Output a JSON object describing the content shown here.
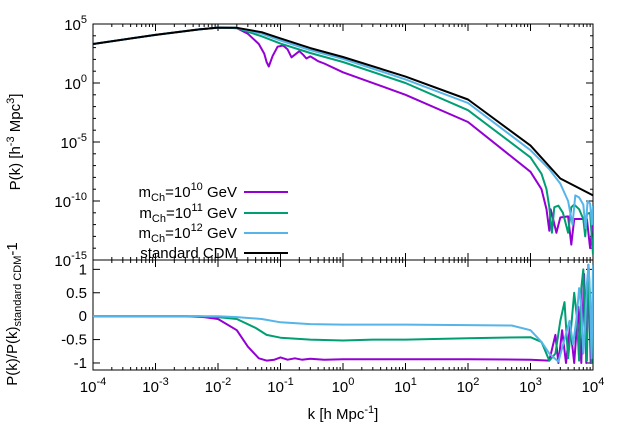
{
  "chart_data": [
    {
      "type": "line",
      "panel": "top",
      "xscale": "log",
      "yscale": "log",
      "xlim": [
        0.0001,
        10000
      ],
      "ylim": [
        1e-15,
        100000
      ],
      "ylabel": {
        "main": "P(k) [h",
        "sup1": "-3",
        "mid": " Mpc",
        "sup2": "3",
        "end": "]"
      },
      "y_ticks": [
        {
          "value": 1e-15,
          "base": "10",
          "exp": "-15"
        },
        {
          "value": 1e-10,
          "base": "10",
          "exp": "-10"
        },
        {
          "value": 1e-05,
          "base": "10",
          "exp": "-5"
        },
        {
          "value": 1,
          "base": "10",
          "exp": "0"
        },
        {
          "value": 100000,
          "base": "10",
          "exp": "5"
        }
      ],
      "legend_position": "bottom-left",
      "series": [
        {
          "name": "mCh=10^10 GeV",
          "legend": {
            "prefix": "m",
            "sub": "Ch",
            "eq": "=10",
            "sup": "10",
            "unit": " GeV"
          },
          "color": "#9400d3",
          "points": [
            [
              0.0001,
              2000
            ],
            [
              0.001,
              12000
            ],
            [
              0.005,
              35000
            ],
            [
              0.01,
              50000
            ],
            [
              0.02,
              45000
            ],
            [
              0.03,
              15000
            ],
            [
              0.045,
              2000
            ],
            [
              0.055,
              300
            ],
            [
              0.06,
              60
            ],
            [
              0.065,
              25
            ],
            [
              0.075,
              200
            ],
            [
              0.09,
              1200
            ],
            [
              0.11,
              1500
            ],
            [
              0.13,
              700
            ],
            [
              0.15,
              150
            ],
            [
              0.17,
              250
            ],
            [
              0.2,
              500
            ],
            [
              0.23,
              250
            ],
            [
              0.26,
              120
            ],
            [
              0.3,
              180
            ],
            [
              0.35,
              110
            ],
            [
              0.4,
              70
            ],
            [
              0.5,
              45
            ],
            [
              1,
              8
            ],
            [
              10,
              0.1
            ],
            [
              100,
              0.0005
            ],
            [
              1000,
              3e-08
            ],
            [
              1500,
              1e-09
            ],
            [
              1800,
              2e-11
            ],
            [
              2000,
              3e-13
            ],
            [
              2100,
              2e-11
            ],
            [
              2300,
              3e-12
            ],
            [
              2600,
              2e-13
            ],
            [
              3000,
              4e-12
            ],
            [
              4000,
              5e-12
            ],
            [
              4500,
              2e-14
            ],
            [
              5000,
              3e-12
            ],
            [
              7000,
              3e-12
            ],
            [
              8000,
              3e-12
            ],
            [
              9000,
              1e-14
            ],
            [
              10000,
              2e-12
            ]
          ]
        },
        {
          "name": "mCh=10^11 GeV",
          "legend": {
            "prefix": "m",
            "sub": "Ch",
            "eq": "=10",
            "sup": "11",
            "unit": " GeV"
          },
          "color": "#009e73",
          "points": [
            [
              0.0001,
              2000
            ],
            [
              0.001,
              12000
            ],
            [
              0.005,
              35000
            ],
            [
              0.01,
              50000
            ],
            [
              0.02,
              45000
            ],
            [
              0.05,
              9000
            ],
            [
              0.1,
              2200
            ],
            [
              0.3,
              350
            ],
            [
              1,
              60
            ],
            [
              10,
              1
            ],
            [
              100,
              0.005
            ],
            [
              1000,
              5e-07
            ],
            [
              1500,
              2e-08
            ],
            [
              1800,
              1e-09
            ],
            [
              2000,
              3e-11
            ],
            [
              2200,
              2e-13
            ],
            [
              2400,
              3e-11
            ],
            [
              2800,
              4e-11
            ],
            [
              3300,
              1e-11
            ],
            [
              4000,
              2e-13
            ],
            [
              4500,
              3e-11
            ],
            [
              5000,
              5e-11
            ],
            [
              6000,
              2e-11
            ],
            [
              7000,
              3e-12
            ],
            [
              7500,
              1e-13
            ],
            [
              8000,
              8e-12
            ],
            [
              9000,
              1e-11
            ],
            [
              10000,
              3e-15
            ]
          ]
        },
        {
          "name": "mCh=10^12 GeV",
          "legend": {
            "prefix": "m",
            "sub": "Ch",
            "eq": "=10",
            "sup": "12",
            "unit": " GeV"
          },
          "color": "#56b4e9",
          "points": [
            [
              0.0001,
              2000
            ],
            [
              0.001,
              12000
            ],
            [
              0.005,
              35000
            ],
            [
              0.01,
              50000
            ],
            [
              0.02,
              48000
            ],
            [
              0.05,
              15000
            ],
            [
              0.1,
              4000
            ],
            [
              0.3,
              600
            ],
            [
              1,
              110
            ],
            [
              10,
              2
            ],
            [
              100,
              0.02
            ],
            [
              1000,
              2e-06
            ],
            [
              2000,
              5e-08
            ],
            [
              3000,
              3e-09
            ],
            [
              4000,
              1e-10
            ],
            [
              4700,
              1e-12
            ],
            [
              5200,
              3e-10
            ],
            [
              6000,
              2e-10
            ],
            [
              7000,
              5e-11
            ],
            [
              7600,
              5e-13
            ],
            [
              8200,
              1e-10
            ],
            [
              9000,
              6e-11
            ],
            [
              9600,
              1e-12
            ],
            [
              10000,
              4e-11
            ]
          ]
        },
        {
          "name": "standard CDM",
          "legend": {
            "label": "standard CDM"
          },
          "color": "#000000",
          "points": [
            [
              0.0001,
              2000
            ],
            [
              0.001,
              12000
            ],
            [
              0.005,
              35000
            ],
            [
              0.01,
              50000
            ],
            [
              0.02,
              48000
            ],
            [
              0.05,
              20000
            ],
            [
              0.1,
              6000
            ],
            [
              0.3,
              900
            ],
            [
              1,
              160
            ],
            [
              10,
              3.5
            ],
            [
              100,
              0.04
            ],
            [
              1000,
              5e-06
            ],
            [
              3000,
              8e-09
            ],
            [
              10000,
              3e-10
            ]
          ]
        }
      ]
    },
    {
      "type": "line",
      "panel": "bottom",
      "xscale": "log",
      "yscale": "linear",
      "xlim": [
        0.0001,
        10000
      ],
      "ylim": [
        -1.15,
        1.2
      ],
      "xlabel": {
        "main": "k [h Mpc",
        "sup": "-1",
        "end": "]"
      },
      "ylabel": {
        "main": "P(k)/P(k)",
        "sub": "standard CDM",
        "end": "-1"
      },
      "x_ticks": [
        {
          "value": 0.0001,
          "base": "10",
          "exp": "-4"
        },
        {
          "value": 0.001,
          "base": "10",
          "exp": "-3"
        },
        {
          "value": 0.01,
          "base": "10",
          "exp": "-2"
        },
        {
          "value": 0.1,
          "base": "10",
          "exp": "-1"
        },
        {
          "value": 1,
          "base": "10",
          "exp": "0"
        },
        {
          "value": 10,
          "base": "10",
          "exp": "1"
        },
        {
          "value": 100,
          "base": "10",
          "exp": "2"
        },
        {
          "value": 1000,
          "base": "10",
          "exp": "3"
        },
        {
          "value": 10000,
          "base": "10",
          "exp": "4"
        }
      ],
      "y_ticks": [
        {
          "value": 1,
          "label": "1"
        },
        {
          "value": 0.5,
          "label": "0.5"
        },
        {
          "value": 0,
          "label": "0"
        },
        {
          "value": -0.5,
          "label": "-0.5"
        },
        {
          "value": -1,
          "label": "-1"
        }
      ],
      "series": [
        {
          "name": "mCh=10^10 GeV",
          "color": "#9400d3",
          "points": [
            [
              0.0001,
              0
            ],
            [
              0.003,
              0
            ],
            [
              0.006,
              -0.02
            ],
            [
              0.01,
              -0.06
            ],
            [
              0.02,
              -0.3
            ],
            [
              0.03,
              -0.65
            ],
            [
              0.045,
              -0.9
            ],
            [
              0.06,
              -0.95
            ],
            [
              0.08,
              -0.93
            ],
            [
              0.1,
              -0.88
            ],
            [
              0.13,
              -0.93
            ],
            [
              0.17,
              -0.9
            ],
            [
              0.22,
              -0.93
            ],
            [
              0.3,
              -0.91
            ],
            [
              0.5,
              -0.93
            ],
            [
              1,
              -0.92
            ],
            [
              10,
              -0.92
            ],
            [
              100,
              -0.92
            ],
            [
              1000,
              -0.93
            ],
            [
              2000,
              -0.95
            ],
            [
              2500,
              -0.4
            ],
            [
              2800,
              -1
            ],
            [
              3200,
              -0.3
            ],
            [
              3700,
              -1
            ],
            [
              4300,
              -0.2
            ],
            [
              5000,
              -1
            ],
            [
              5800,
              0.2
            ],
            [
              6500,
              -1
            ],
            [
              7200,
              0.9
            ],
            [
              7800,
              -1
            ],
            [
              8400,
              1.1
            ],
            [
              9200,
              -1
            ],
            [
              10000,
              0.5
            ]
          ]
        },
        {
          "name": "mCh=10^11 GeV",
          "color": "#009e73",
          "points": [
            [
              0.0001,
              0
            ],
            [
              0.005,
              0
            ],
            [
              0.01,
              -0.02
            ],
            [
              0.02,
              -0.06
            ],
            [
              0.04,
              -0.25
            ],
            [
              0.06,
              -0.4
            ],
            [
              0.1,
              -0.46
            ],
            [
              0.3,
              -0.5
            ],
            [
              1,
              -0.52
            ],
            [
              3,
              -0.5
            ],
            [
              10,
              -0.5
            ],
            [
              100,
              -0.47
            ],
            [
              1000,
              -0.45
            ],
            [
              1500,
              -0.55
            ],
            [
              2000,
              -0.95
            ],
            [
              2500,
              -0.8
            ],
            [
              3000,
              -0.1
            ],
            [
              3500,
              0.3
            ],
            [
              4000,
              -0.9
            ],
            [
              4500,
              -0.2
            ],
            [
              5000,
              0.5
            ],
            [
              5500,
              0
            ],
            [
              6000,
              -0.95
            ],
            [
              6500,
              0.6
            ],
            [
              7000,
              1.0
            ],
            [
              7500,
              -0.3
            ],
            [
              8000,
              -0.95
            ],
            [
              8500,
              1.05
            ],
            [
              9000,
              0.4
            ],
            [
              9500,
              -1
            ],
            [
              10000,
              0.8
            ]
          ]
        },
        {
          "name": "mCh=10^12 GeV",
          "color": "#56b4e9",
          "points": [
            [
              0.0001,
              0
            ],
            [
              0.01,
              0
            ],
            [
              0.02,
              -0.02
            ],
            [
              0.05,
              -0.06
            ],
            [
              0.1,
              -0.13
            ],
            [
              0.3,
              -0.17
            ],
            [
              1,
              -0.18
            ],
            [
              10,
              -0.18
            ],
            [
              100,
              -0.19
            ],
            [
              500,
              -0.2
            ],
            [
              1000,
              -0.3
            ],
            [
              1500,
              -0.55
            ],
            [
              2000,
              -0.8
            ],
            [
              2800,
              -0.97
            ],
            [
              3500,
              -0.5
            ],
            [
              4200,
              -0.1
            ],
            [
              4800,
              -0.6
            ],
            [
              5500,
              0
            ],
            [
              6000,
              0.6
            ],
            [
              6500,
              0.2
            ],
            [
              7000,
              -0.8
            ],
            [
              7500,
              -0.2
            ],
            [
              8000,
              0.7
            ],
            [
              8500,
              1.1
            ],
            [
              9000,
              0.3
            ],
            [
              9500,
              -0.9
            ],
            [
              10000,
              1.1
            ]
          ]
        }
      ]
    }
  ]
}
